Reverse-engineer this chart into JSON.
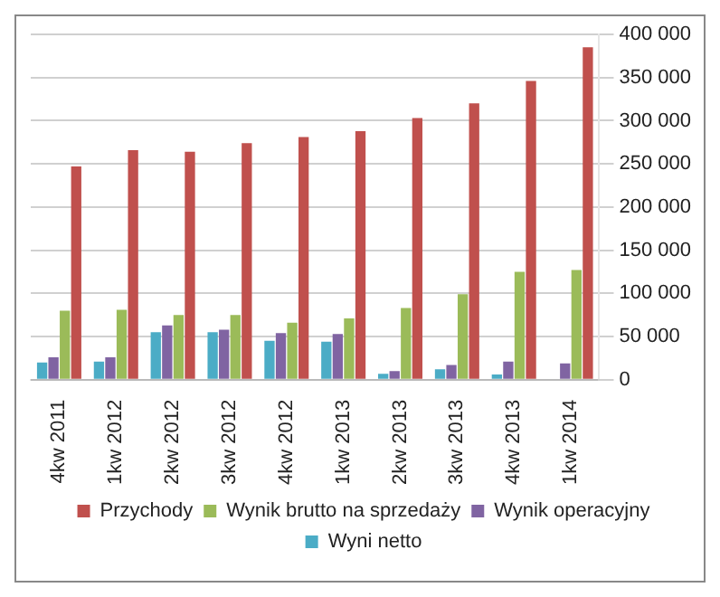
{
  "chart_data": {
    "type": "bar",
    "categories": [
      "4kw 2011",
      "1kw 2012",
      "2kw 2012",
      "3kw 2012",
      "4kw 2012",
      "1kw 2013",
      "2kw 2013",
      "3kw 2013",
      "4kw 2013",
      "1kw 2014"
    ],
    "series": [
      {
        "name": "Przychody",
        "color": "#c0504d",
        "values": [
          247000,
          266000,
          264000,
          274000,
          281000,
          288000,
          303000,
          320000,
          346000,
          385000
        ]
      },
      {
        "name": "Wynik brutto na sprzedaży",
        "color": "#9bbb59",
        "values": [
          80000,
          81000,
          75000,
          75000,
          66000,
          71000,
          83000,
          99000,
          125000,
          127000
        ]
      },
      {
        "name": "Wynik operacyjny",
        "color": "#8064a2",
        "values": [
          26000,
          26000,
          63000,
          58000,
          54000,
          53000,
          10000,
          17000,
          21000,
          19000
        ]
      },
      {
        "name": "Wyni netto",
        "color": "#4bacc6",
        "values": [
          20000,
          21000,
          55000,
          55000,
          45000,
          44000,
          7000,
          12000,
          6000,
          0
        ]
      }
    ],
    "ylim": [
      0,
      400000
    ],
    "yticks": [
      0,
      {
        "value": 50000,
        "label": "50 000"
      },
      {
        "value": 100000,
        "label": "100 000"
      },
      {
        "value": 150000,
        "label": "150 000"
      },
      {
        "value": 200000,
        "label": "200 000"
      },
      {
        "value": 250000,
        "label": "250 000"
      },
      {
        "value": 300000,
        "label": "300 000"
      },
      {
        "value": 350000,
        "label": "350 000"
      },
      {
        "value": 400000,
        "label": "400 000"
      }
    ],
    "grid": "y",
    "legend": "bottom"
  }
}
